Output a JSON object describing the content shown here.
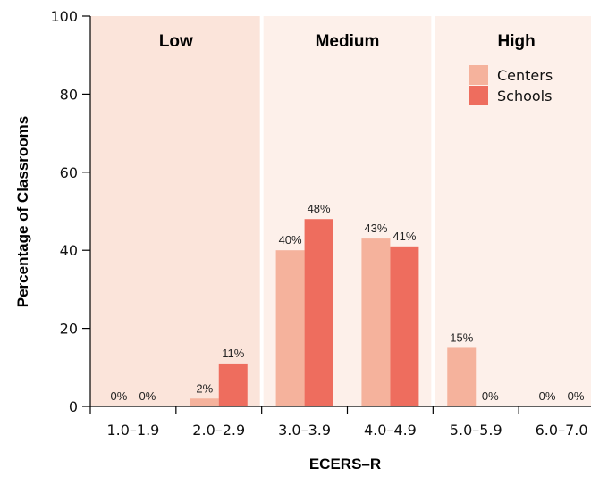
{
  "chart_data": {
    "type": "bar",
    "title": "",
    "xlabel": "ECERS–R",
    "ylabel": "Percentage of Classrooms",
    "ylim": [
      0,
      100
    ],
    "yticks": [
      0,
      20,
      40,
      60,
      80,
      100
    ],
    "categories": [
      "1.0–1.9",
      "2.0–2.9",
      "3.0–3.9",
      "4.0–4.9",
      "5.0–5.9",
      "6.0–7.0"
    ],
    "series": [
      {
        "name": "Centers",
        "values": [
          0,
          2,
          40,
          43,
          15,
          0
        ],
        "labels": [
          "0%",
          "2%",
          "40%",
          "43%",
          "15%",
          "0%"
        ],
        "color": "#f5b29c"
      },
      {
        "name": "Schools",
        "values": [
          0,
          11,
          48,
          41,
          0,
          0
        ],
        "labels": [
          "0%",
          "11%",
          "48%",
          "41%",
          "0%",
          "0%"
        ],
        "color": "#ee6d5e"
      }
    ],
    "bands": [
      {
        "label": "Low",
        "categories": [
          0,
          1
        ],
        "color": "#fbe4da"
      },
      {
        "label": "Medium",
        "categories": [
          2,
          3
        ],
        "color": "#fdf0ea"
      },
      {
        "label": "High",
        "categories": [
          4,
          5
        ],
        "color": "#fdf0ea"
      }
    ],
    "legend": {
      "position": "top-right"
    },
    "grid": false
  }
}
